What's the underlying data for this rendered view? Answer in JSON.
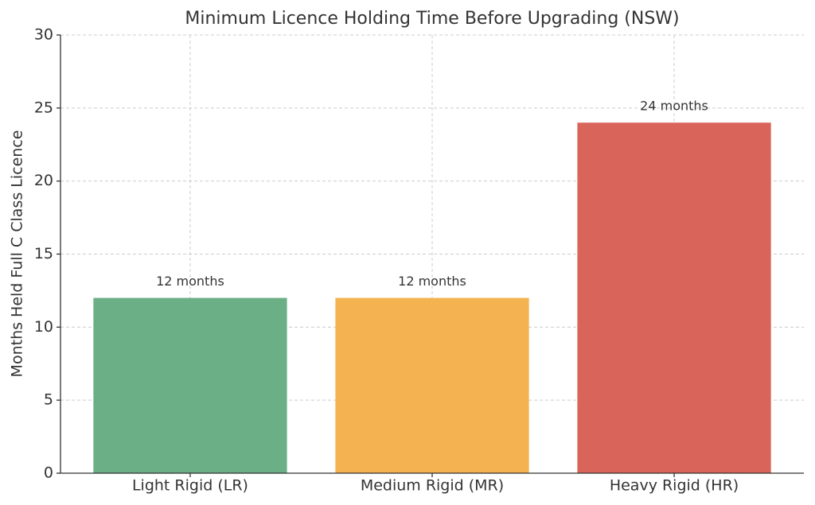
{
  "chart_data": {
    "type": "bar",
    "title": "Minimum Licence Holding Time Before Upgrading (NSW)",
    "y_label": "Months Held Full C Class Licence",
    "categories": [
      "Light Rigid (LR)",
      "Medium Rigid (MR)",
      "Heavy Rigid (HR)"
    ],
    "values": [
      12,
      12,
      24
    ],
    "value_labels": [
      "12 months",
      "12 months",
      "24 months"
    ],
    "colors": [
      "#6aaf85",
      "#f4b350",
      "#d9645a"
    ],
    "ylim": [
      0,
      30
    ],
    "yticks": [
      0,
      5,
      10,
      15,
      20,
      25,
      30
    ],
    "grid": true
  }
}
